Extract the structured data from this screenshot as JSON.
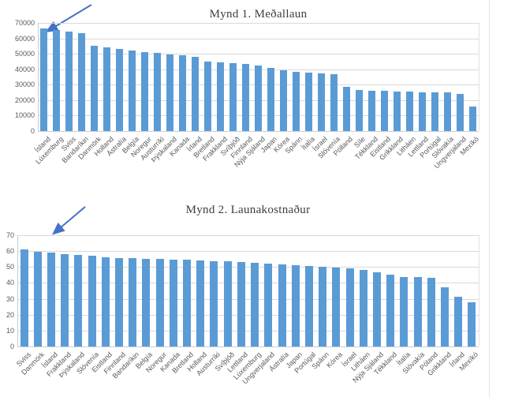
{
  "colors": {
    "bar": "#5b9bd5",
    "gridline": "#d9d9d9",
    "axis": "#c6cdd6",
    "tick_label": "#595959",
    "title": "#3d3d3d",
    "arrow": "#4472c4"
  },
  "chart_data": [
    {
      "type": "bar",
      "title": "Mynd 1. Meðallaun",
      "xlabel": "",
      "ylabel": "",
      "ylim": [
        0,
        70000
      ],
      "yticks": [
        0,
        10000,
        20000,
        30000,
        40000,
        50000,
        60000,
        70000
      ],
      "grid": true,
      "legend": null,
      "annotations": [
        "blue arrow pointing at first bar (Ísland)"
      ],
      "categories": [
        "Ísland",
        "Lúxemburg",
        "Sviss",
        "Bandaríkin",
        "Danmörk",
        "Holland",
        "Ástralía",
        "Belgía",
        "Noregur",
        "Austurríki",
        "Þýskaland",
        "Kanada",
        "Írland",
        "Bretland",
        "Frakkland",
        "Svíþjóð",
        "Finnland",
        "Nýja Sjáland",
        "Japan",
        "Kórea",
        "Spánn",
        "Ítalía",
        "Ísrael",
        "Slóvenía",
        "Pólland",
        "Síle",
        "Tékkland",
        "Eistland",
        "Grikkland",
        "Litháen",
        "Lettland",
        "Portúgal",
        "Slóvakía",
        "Ungverjaland",
        "Mexíkó"
      ],
      "values": [
        66500,
        65600,
        64500,
        63300,
        55200,
        54200,
        53100,
        52100,
        51100,
        50400,
        49800,
        49100,
        48100,
        44900,
        44500,
        44000,
        43400,
        42300,
        40800,
        39500,
        38500,
        37600,
        37300,
        37000,
        28600,
        26400,
        26100,
        25900,
        25600,
        25800,
        25100,
        24800,
        25100,
        24200,
        15600
      ]
    },
    {
      "type": "bar",
      "title": "Mynd 2. Launakostnaður",
      "xlabel": "",
      "ylabel": "",
      "ylim": [
        0,
        70
      ],
      "yticks": [
        0,
        10,
        20,
        30,
        40,
        50,
        60,
        70
      ],
      "grid": true,
      "legend": null,
      "annotations": [
        "blue arrow pointing at first bars (Sviss/Danmörk)"
      ],
      "categories": [
        "Sviss",
        "Danmörk",
        "Ísland",
        "Frakkland",
        "Þýskaland",
        "Slóvenía",
        "Eistland",
        "Finnland",
        "Bandaríkin",
        "Belgía",
        "Noregur",
        "Kanada",
        "Bretland",
        "Holland",
        "Austurríki",
        "Svíþjóð",
        "Lettland",
        "Lúxemburg",
        "Ungverjaland",
        "Ástralía",
        "Japan",
        "Portúgal",
        "Spánn",
        "Kórea",
        "Ísrael",
        "Litháen",
        "Nýja Sjáland",
        "Tékkland",
        "Ítalía",
        "Slóvakía",
        "Póland",
        "Grikkland",
        "Írland",
        "Mexíkó"
      ],
      "values": [
        61,
        59.5,
        59,
        58.3,
        57.5,
        57,
        56,
        55.6,
        55.4,
        55.2,
        55,
        54.8,
        54.4,
        54.1,
        53.8,
        53.4,
        53,
        52.5,
        52.2,
        51.8,
        51.3,
        50.8,
        50.2,
        49.6,
        49,
        48.2,
        46.5,
        45,
        43.8,
        43.5,
        43,
        37,
        31.5,
        28
      ]
    }
  ]
}
